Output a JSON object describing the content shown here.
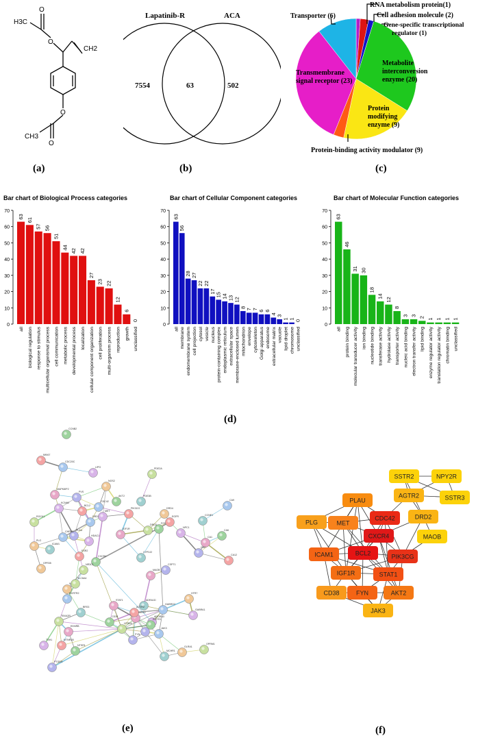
{
  "panel_labels": {
    "a": "(a)",
    "b": "(b)",
    "c": "(c)",
    "d": "(d)",
    "e": "(e)",
    "f": "(f)"
  },
  "molecule": {
    "ch3_top": "H3C",
    "ch2": "CH2",
    "ch3_bottom": "CH3"
  },
  "venn": {
    "left_label": "Lapatinib-R",
    "right_label": "ACA",
    "left_only": "7554",
    "overlap": "63",
    "right_only": "502"
  },
  "pie": {
    "labels": {
      "transporter": "Transporter (6)",
      "rna": "RNA metabolism protein(1)",
      "cell_adhesion": "Cell adhesion molecule (2)",
      "gene_specific_1": "Gene-specific transcriptional",
      "gene_specific_2": "regulator (1)",
      "metabolite_1": "Metabolite",
      "metabolite_2": "interconversion",
      "metabolite_3": "enzyme (20)",
      "transmembrane_1": "Transmembrane",
      "transmembrane_2": "signal receptor (23)",
      "protein_mod_1": "Protein",
      "protein_mod_2": "modifying",
      "protein_mod_3": "enzyme (9)",
      "protein_binding": "Protein-binding activity modulator (9)"
    },
    "colors": {
      "transporter": "#1eb4e6",
      "transmembrane": "#e61ec8",
      "protein_binding": "#ff5a14",
      "protein_mod": "#fae614",
      "metabolite": "#1ec81e",
      "gene": "#1414c8",
      "cell_adhesion": "#dc1414",
      "rna": "#b41ec8"
    }
  },
  "chart_data": [
    {
      "type": "bar",
      "title": "Bar chart of Biological Process categories",
      "color": "#e01010",
      "ylim": [
        0,
        70
      ],
      "yticks": [
        0,
        10,
        20,
        30,
        40,
        50,
        60,
        70
      ],
      "categories": [
        "all",
        "biological regulation",
        "response to stimulus",
        "multicellular organismal process",
        "cell communication",
        "metabolic process",
        "developmental process",
        "localization",
        "cellular component organization",
        "cell proliferation",
        "multi-organism process",
        "reproduction",
        "growth",
        "unclassified"
      ],
      "values": [
        63,
        61,
        57,
        56,
        51,
        44,
        42,
        42,
        27,
        23,
        22,
        12,
        6,
        0
      ]
    },
    {
      "type": "bar",
      "title": "Bar chart of Cellular Component categories",
      "color": "#1010c0",
      "ylim": [
        0,
        70
      ],
      "yticks": [
        0,
        10,
        20,
        30,
        40,
        50,
        60,
        70
      ],
      "categories": [
        "all",
        "membrane",
        "endomembrane system",
        "cell projection",
        "cytosol",
        "vesicle",
        "nucleus",
        "protein-containing complex",
        "endoplasmic reticulum",
        "extracellular space",
        "membrane-enclosed lumen",
        "mitochondrion",
        "envelope",
        "cytoskeleton",
        "Golgi apparatus",
        "endosome",
        "extracellular matrix",
        "vacuole",
        "lipid droplet",
        "chromosome",
        "unclassified"
      ],
      "values": [
        63,
        56,
        28,
        27,
        22,
        22,
        17,
        15,
        14,
        13,
        12,
        8,
        7,
        7,
        6,
        6,
        4,
        3,
        1,
        1,
        0
      ]
    },
    {
      "type": "bar",
      "title": "Bar chart of Molecular Function categories",
      "color": "#18b418",
      "ylim": [
        0,
        70
      ],
      "yticks": [
        0,
        10,
        20,
        30,
        40,
        50,
        60,
        70
      ],
      "categories": [
        "all",
        "protein binding",
        "molecular transducer activity",
        "ion binding",
        "nucleotide binding",
        "transferase activity",
        "hydrolase activity",
        "transporter activity",
        "nucleic acid binding",
        "electron transfer activity",
        "lipid binding",
        "enzyme regulator activity",
        "translation regulator activity",
        "chromatin binding",
        "unclassified"
      ],
      "values": [
        63,
        46,
        31,
        30,
        18,
        14,
        12,
        8,
        3,
        3,
        2,
        1,
        1,
        1,
        1
      ]
    }
  ],
  "network_e": {
    "nodes": [
      "CCNB2",
      "MKI67",
      "CDC20C",
      "LIPG",
      "PDE2A",
      "NOS2",
      "PDE3B",
      "MAPK8IP2",
      "PVS",
      "AKT2",
      "PIK3CG",
      "DRD2",
      "MET",
      "ROCK1",
      "PLG",
      "ICAM1",
      "IGF1R",
      "PLAU",
      "CXCR4",
      "ESR2",
      "CHRM1",
      "HDAC1",
      "NR3C1",
      "GPR35",
      "CYP2J2",
      "MAOB",
      "CSPT1",
      "FOS",
      "EGFR",
      "GABRG2",
      "ADORA3",
      "HTR2A",
      "HTR7",
      "ADRA1D",
      "SSTR2",
      "NPY2R",
      "SSTR3",
      "AGTR2",
      "JAK3",
      "TSH1",
      "TBXA2R",
      "NMU",
      "BRS3",
      "EDNRB",
      "PTGDR",
      "NTSR1",
      "MTNR1B",
      "HCRTR2",
      "GABRA1",
      "OPRM1",
      "GLRA1",
      "MCHR1",
      "CA1",
      "CA2",
      "CA6",
      "CA12",
      "CA9",
      "NPC1",
      "DRD3",
      "DRD4",
      "CCNE1",
      "STAT1",
      "FYN",
      "CD38",
      "BCL2",
      "CDC42",
      "KCNH2",
      "SLC6A4"
    ]
  },
  "network_f": {
    "nodes": [
      {
        "id": "SSTR2",
        "color": "#fcd20a"
      },
      {
        "id": "NPY2R",
        "color": "#fcd20a"
      },
      {
        "id": "SSTR3",
        "color": "#fcd20a"
      },
      {
        "id": "AGTR2",
        "color": "#fab414"
      },
      {
        "id": "DRD2",
        "color": "#fab414"
      },
      {
        "id": "PLAU",
        "color": "#f88c10"
      },
      {
        "id": "CDC42",
        "color": "#ea2a16"
      },
      {
        "id": "PLG",
        "color": "#f8a01c"
      },
      {
        "id": "MET",
        "color": "#f8821c"
      },
      {
        "id": "CXCR4",
        "color": "#e01818"
      },
      {
        "id": "MAOB",
        "color": "#fcd20a"
      },
      {
        "id": "ICAM1",
        "color": "#f46414"
      },
      {
        "id": "BCL2",
        "color": "#e61414"
      },
      {
        "id": "PIK3CG",
        "color": "#e83218"
      },
      {
        "id": "IGF1R",
        "color": "#f46e14"
      },
      {
        "id": "STAT1",
        "color": "#f25014"
      },
      {
        "id": "CD38",
        "color": "#f89a1c"
      },
      {
        "id": "FYN",
        "color": "#f46414"
      },
      {
        "id": "AKT2",
        "color": "#f47814"
      },
      {
        "id": "JAK3",
        "color": "#fab414"
      }
    ]
  }
}
